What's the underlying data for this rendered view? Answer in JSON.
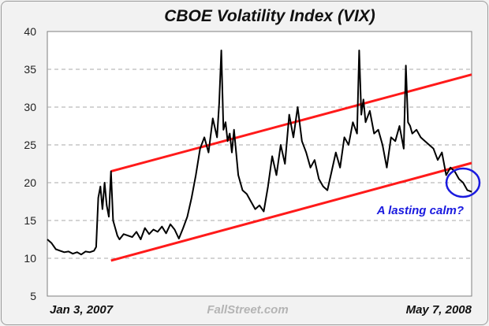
{
  "chart_data": {
    "type": "line",
    "title": "CBOE Volatility Index (VIX)",
    "xlabel": "",
    "ylabel": "",
    "ylim": [
      5,
      40
    ],
    "y_ticks": [
      5,
      10,
      15,
      20,
      25,
      30,
      35,
      40
    ],
    "x_start_label": "Jan 3, 2007",
    "x_end_label": "May 7, 2008",
    "source_label": "FallStreet.com",
    "annotation": "A lasting calm?",
    "grid": true,
    "series": [
      {
        "name": "VIX",
        "color": "#000000",
        "x": [
          0,
          0.01,
          0.02,
          0.03,
          0.04,
          0.05,
          0.06,
          0.07,
          0.08,
          0.09,
          0.1,
          0.11,
          0.115,
          0.12,
          0.125,
          0.13,
          0.135,
          0.14,
          0.145,
          0.15,
          0.155,
          0.16,
          0.165,
          0.17,
          0.18,
          0.19,
          0.2,
          0.21,
          0.22,
          0.23,
          0.24,
          0.25,
          0.26,
          0.27,
          0.28,
          0.29,
          0.3,
          0.31,
          0.32,
          0.33,
          0.34,
          0.35,
          0.36,
          0.37,
          0.38,
          0.39,
          0.4,
          0.405,
          0.41,
          0.415,
          0.42,
          0.425,
          0.43,
          0.435,
          0.44,
          0.45,
          0.46,
          0.47,
          0.48,
          0.49,
          0.5,
          0.51,
          0.52,
          0.53,
          0.54,
          0.55,
          0.56,
          0.57,
          0.58,
          0.59,
          0.6,
          0.61,
          0.62,
          0.63,
          0.64,
          0.65,
          0.66,
          0.67,
          0.68,
          0.69,
          0.7,
          0.71,
          0.72,
          0.73,
          0.735,
          0.74,
          0.745,
          0.75,
          0.76,
          0.77,
          0.78,
          0.79,
          0.8,
          0.81,
          0.82,
          0.83,
          0.84,
          0.845,
          0.85,
          0.855,
          0.86,
          0.87,
          0.88,
          0.89,
          0.9,
          0.91,
          0.92,
          0.93,
          0.94,
          0.95,
          0.96,
          0.97,
          0.98,
          0.99,
          1.0
        ],
        "values": [
          12.5,
          12.0,
          11.2,
          11.0,
          10.8,
          10.9,
          10.6,
          10.8,
          10.5,
          10.9,
          10.8,
          11.0,
          11.5,
          18.0,
          19.5,
          16.5,
          20.0,
          17.0,
          15.5,
          21.5,
          15.0,
          14.0,
          13.0,
          12.5,
          13.2,
          13.0,
          12.8,
          13.5,
          12.5,
          14.0,
          13.2,
          13.8,
          13.5,
          14.2,
          13.3,
          14.5,
          13.8,
          12.6,
          14.0,
          15.5,
          18.0,
          21.0,
          24.5,
          26.0,
          24.0,
          28.5,
          26.0,
          30.5,
          37.5,
          27.0,
          28.0,
          25.5,
          26.5,
          24.0,
          27.0,
          21.0,
          19.0,
          18.5,
          17.5,
          16.5,
          17.0,
          16.2,
          19.5,
          23.5,
          21.0,
          25.0,
          22.5,
          29.0,
          26.0,
          30.0,
          25.5,
          24.0,
          22.0,
          23.0,
          20.5,
          19.5,
          19.0,
          21.5,
          24.0,
          22.0,
          26.0,
          25.0,
          28.0,
          26.5,
          37.5,
          29.0,
          31.0,
          28.0,
          29.5,
          26.5,
          27.0,
          25.0,
          22.0,
          26.0,
          25.5,
          27.5,
          24.5,
          35.5,
          28.0,
          27.5,
          26.5,
          27.0,
          26.0,
          25.5,
          25.0,
          24.5,
          23.0,
          24.0,
          21.0,
          22.0,
          21.5,
          20.5,
          20.0,
          19.0,
          18.8
        ]
      },
      {
        "name": "Upper trend line",
        "color": "#ff1a1a",
        "x": [
          0.15,
          1.0
        ],
        "values": [
          21.5,
          34.3
        ]
      },
      {
        "name": "Lower trend line",
        "color": "#ff1a1a",
        "x": [
          0.15,
          1.0
        ],
        "values": [
          9.7,
          22.6
        ]
      }
    ]
  }
}
